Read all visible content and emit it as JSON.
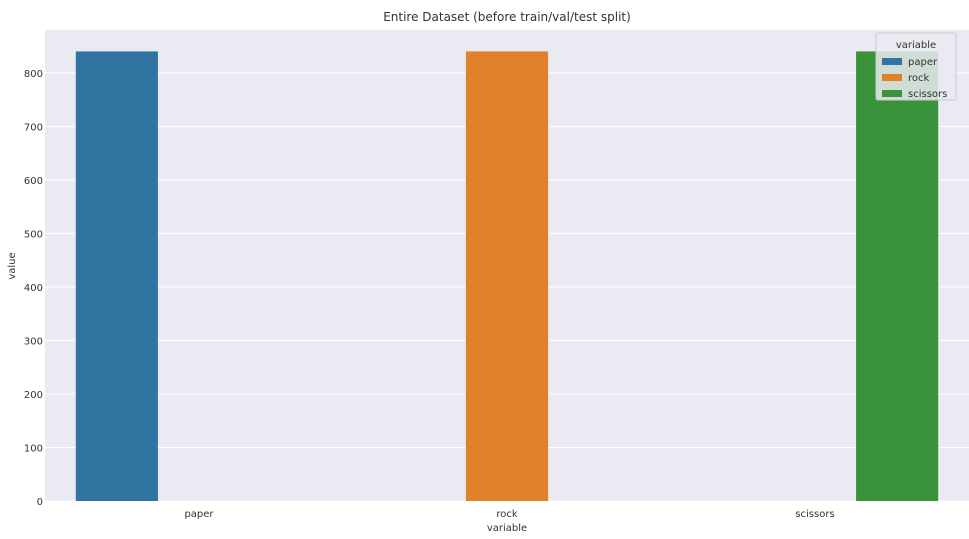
{
  "chart_data": {
    "type": "bar",
    "title": "Entire Dataset (before train/val/test split)",
    "xlabel": "variable",
    "ylabel": "value",
    "categories": [
      "paper",
      "rock",
      "scissors"
    ],
    "series": [
      {
        "name": "paper",
        "color": "#3274a1",
        "values": [
          840,
          null,
          null
        ]
      },
      {
        "name": "rock",
        "color": "#e1812c",
        "values": [
          null,
          840,
          null
        ]
      },
      {
        "name": "scissors",
        "color": "#3a923a",
        "values": [
          null,
          null,
          840
        ]
      }
    ],
    "ylim": [
      0,
      880
    ],
    "yticks": [
      0,
      100,
      200,
      300,
      400,
      500,
      600,
      700,
      800
    ],
    "grid": true,
    "legend": {
      "title": "variable",
      "placement": "top-right"
    },
    "background_color": "#eaeaf2",
    "grid_color": "#ffffff"
  }
}
